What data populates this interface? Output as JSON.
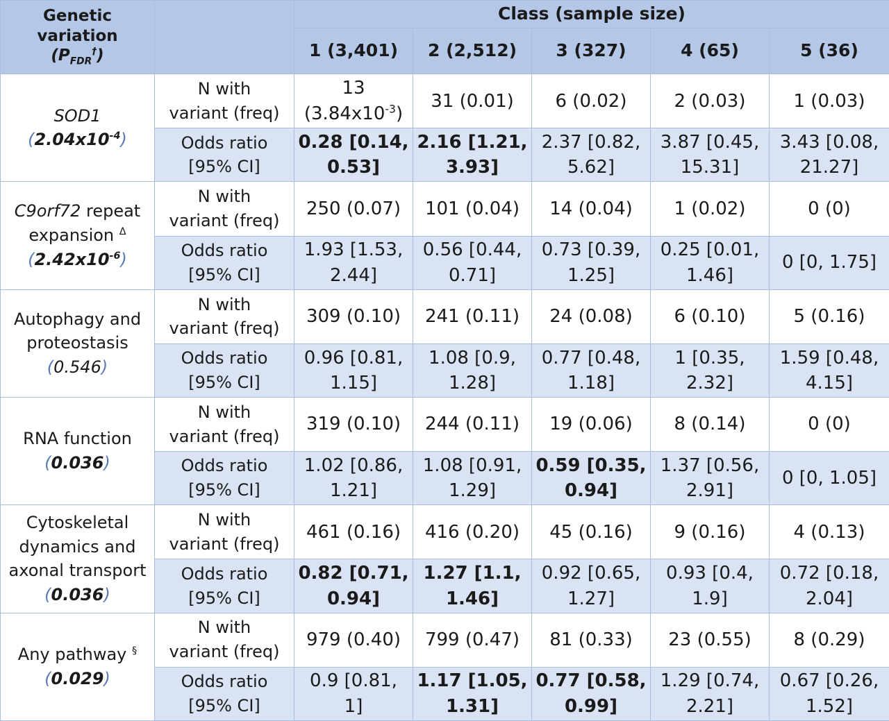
{
  "header": {
    "genetic_variation_line1": "Genetic",
    "genetic_variation_line2": "variation",
    "p_label": "P",
    "p_sub": "FDR",
    "p_sup": "†",
    "class_title": "Class (sample size)",
    "classes": [
      "1 (3,401)",
      "2 (2,512)",
      "3 (327)",
      "4 (65)",
      "5 (36)"
    ]
  },
  "sublabels": {
    "n_line1": "N with",
    "n_line2": "variant (freq)",
    "or_line1": "Odds ratio",
    "or_line2": "[95% CI]"
  },
  "groups": [
    {
      "label_lines": [
        "SOD1"
      ],
      "label_italic": true,
      "p_value": "2.04x10",
      "p_exp": "-4",
      "p_bold": true,
      "n": [
        {
          "l1": "13",
          "l2": "(3.84x10",
          "exp": "-3",
          "l2_end": ")",
          "bold": false
        },
        {
          "l1": "31 (0.01)",
          "bold": false
        },
        {
          "l1": "6 (0.02)",
          "bold": false
        },
        {
          "l1": "2 (0.03)",
          "bold": false
        },
        {
          "l1": "1 (0.03)",
          "bold": false
        }
      ],
      "or": [
        {
          "l1": "0.28 [0.14,",
          "l2": "0.53]",
          "bold": true
        },
        {
          "l1": "2.16 [1.21,",
          "l2": "3.93]",
          "bold": true
        },
        {
          "l1": "2.37 [0.82,",
          "l2": "5.62]",
          "bold": false
        },
        {
          "l1": "3.87 [0.45,",
          "l2": "15.31]",
          "bold": false
        },
        {
          "l1": "3.43 [0.08,",
          "l2": "21.27]",
          "bold": false
        }
      ]
    },
    {
      "label_lines": [
        "C9orf72",
        " repeat",
        "expansion",
        "Δ"
      ],
      "label_italic": false,
      "p_value": "2.42x10",
      "p_exp": "-6",
      "p_bold": true,
      "n": [
        {
          "l1": "250 (0.07)",
          "bold": false
        },
        {
          "l1": "101 (0.04)",
          "bold": false
        },
        {
          "l1": "14 (0.04)",
          "bold": false
        },
        {
          "l1": "1 (0.02)",
          "bold": false
        },
        {
          "l1": "0 (0)",
          "bold": false
        }
      ],
      "or": [
        {
          "l1": "1.93 [1.53,",
          "l2": "2.44]",
          "bold": false
        },
        {
          "l1": "0.56 [0.44,",
          "l2": "0.71]",
          "bold": false
        },
        {
          "l1": "0.73 [0.39,",
          "l2": "1.25]",
          "bold": false
        },
        {
          "l1": "0.25 [0.01,",
          "l2": "1.46]",
          "bold": false
        },
        {
          "l1": "0 [0, 1.75]",
          "bold": false
        }
      ]
    },
    {
      "label_lines": [
        "Autophagy and",
        "proteostasis"
      ],
      "label_italic": false,
      "p_value": "0.546",
      "p_bold": false,
      "n": [
        {
          "l1": "309 (0.10)",
          "bold": false
        },
        {
          "l1": "241 (0.11)",
          "bold": false
        },
        {
          "l1": "24 (0.08)",
          "bold": false
        },
        {
          "l1": "6 (0.10)",
          "bold": false
        },
        {
          "l1": "5 (0.16)",
          "bold": false
        }
      ],
      "or": [
        {
          "l1": "0.96 [0.81,",
          "l2": "1.15]",
          "bold": false
        },
        {
          "l1": "1.08 [0.9,",
          "l2": "1.28]",
          "bold": false
        },
        {
          "l1": "0.77 [0.48,",
          "l2": "1.18]",
          "bold": false
        },
        {
          "l1": "1 [0.35,",
          "l2": "2.32]",
          "bold": false
        },
        {
          "l1": "1.59 [0.48,",
          "l2": "4.15]",
          "bold": false
        }
      ]
    },
    {
      "label_lines": [
        "RNA function"
      ],
      "label_italic": false,
      "p_value": "0.036",
      "p_bold": true,
      "n": [
        {
          "l1": "319 (0.10)",
          "bold": false
        },
        {
          "l1": "244 (0.11)",
          "bold": false
        },
        {
          "l1": "19 (0.06)",
          "bold": false
        },
        {
          "l1": "8 (0.14)",
          "bold": false
        },
        {
          "l1": "0 (0)",
          "bold": false
        }
      ],
      "or": [
        {
          "l1": "1.02 [0.86,",
          "l2": "1.21]",
          "bold": false
        },
        {
          "l1": "1.08 [0.91,",
          "l2": "1.29]",
          "bold": false
        },
        {
          "l1": "0.59 [0.35,",
          "l2": "0.94]",
          "bold": true
        },
        {
          "l1": "1.37 [0.56,",
          "l2": "2.91]",
          "bold": false
        },
        {
          "l1": "0 [0, 1.05]",
          "bold": false
        }
      ]
    },
    {
      "label_lines": [
        "Cytoskeletal",
        "dynamics and",
        "axonal transport"
      ],
      "label_italic": false,
      "p_value": "0.036",
      "p_bold": true,
      "n": [
        {
          "l1": "461 (0.16)",
          "bold": false
        },
        {
          "l1": "416 (0.20)",
          "bold": false
        },
        {
          "l1": "45 (0.16)",
          "bold": false
        },
        {
          "l1": "9 (0.16)",
          "bold": false
        },
        {
          "l1": "4 (0.13)",
          "bold": false
        }
      ],
      "or": [
        {
          "l1": "0.82 [0.71,",
          "l2": "0.94]",
          "bold": true
        },
        {
          "l1": "1.27 [1.1,",
          "l2": "1.46]",
          "bold": true
        },
        {
          "l1": "0.92 [0.65,",
          "l2": "1.27]",
          "bold": false
        },
        {
          "l1": "0.93 [0.4,",
          "l2": "1.9]",
          "bold": false
        },
        {
          "l1": "0.72 [0.18,",
          "l2": "2.04]",
          "bold": false
        }
      ]
    },
    {
      "label_lines": [
        "Any pathway",
        "§"
      ],
      "label_italic": false,
      "p_value": "0.029",
      "p_bold": true,
      "n": [
        {
          "l1": "979 (0.40)",
          "bold": false
        },
        {
          "l1": "799 (0.47)",
          "bold": false
        },
        {
          "l1": "81 (0.33)",
          "bold": false
        },
        {
          "l1": "23 (0.55)",
          "bold": false
        },
        {
          "l1": "8 (0.29)",
          "bold": false
        }
      ],
      "or": [
        {
          "l1": "0.9 [0.81,",
          "l2": "1]",
          "bold": false
        },
        {
          "l1": "1.17 [1.05,",
          "l2": "1.31]",
          "bold": true
        },
        {
          "l1": "0.77 [0.58,",
          "l2": "0.99]",
          "bold": true
        },
        {
          "l1": "1.29 [0.74,",
          "l2": "2.21]",
          "bold": false
        },
        {
          "l1": "0.67 [0.26,",
          "l2": "1.52]",
          "bold": false
        }
      ]
    }
  ]
}
